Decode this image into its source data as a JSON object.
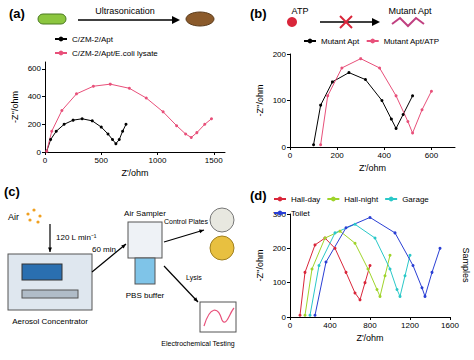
{
  "chart_data": [
    {
      "type": "line",
      "title": "(a)",
      "annotations": [
        "Ultrasonication"
      ],
      "xlabel": "Z'/ohm",
      "ylabel": "-Z''/ohm",
      "xlim": [
        0,
        1600
      ],
      "xticks": [
        0,
        500,
        1000,
        1500
      ],
      "ylim": [
        0,
        650
      ],
      "yticks": [
        0,
        200,
        400,
        600
      ],
      "grid": false,
      "legend": "top-left",
      "series": [
        {
          "name": "C/ZM-2/Apt",
          "color": "#000000",
          "marker": "circle",
          "line_style": "solid",
          "x": [
            15,
            50,
            100,
            170,
            250,
            330,
            420,
            500,
            560,
            600,
            630,
            660,
            690,
            720
          ],
          "values": [
            5,
            90,
            150,
            200,
            230,
            240,
            225,
            180,
            130,
            90,
            60,
            90,
            150,
            200
          ]
        },
        {
          "name": "C/ZM-2/Apt/E.coli lysate",
          "color": "#e8507a",
          "marker": "circle",
          "line_style": "solid",
          "x": [
            15,
            60,
            150,
            280,
            430,
            580,
            750,
            900,
            1050,
            1170,
            1250,
            1300,
            1350,
            1420,
            1480
          ],
          "values": [
            5,
            150,
            300,
            420,
            475,
            490,
            460,
            390,
            290,
            190,
            130,
            105,
            140,
            200,
            240
          ]
        }
      ]
    },
    {
      "type": "line",
      "title": "(b)",
      "annotations": [
        "ATP",
        "Mutant Apt"
      ],
      "xlabel": "Z'/ohm",
      "ylabel": "-Z''/ohm",
      "xlim": [
        0,
        700
      ],
      "xticks": [
        0,
        200,
        400,
        600
      ],
      "ylim": [
        0,
        200
      ],
      "yticks": [
        0,
        100,
        200
      ],
      "grid": false,
      "legend": "top",
      "series": [
        {
          "name": "Mutant Apt",
          "color": "#000000",
          "marker": "circle",
          "line_style": "solid",
          "x": [
            100,
            130,
            180,
            250,
            320,
            390,
            430,
            450,
            480,
            520
          ],
          "values": [
            5,
            90,
            140,
            160,
            145,
            100,
            60,
            40,
            70,
            110
          ]
        },
        {
          "name": "Mutant Apt/ATP",
          "color": "#e8507a",
          "marker": "circle",
          "line_style": "solid",
          "x": [
            130,
            160,
            220,
            300,
            380,
            450,
            500,
            520,
            560,
            600
          ],
          "values": [
            5,
            110,
            170,
            190,
            170,
            110,
            55,
            30,
            80,
            120
          ]
        }
      ]
    },
    {
      "type": "line",
      "title": "(d)",
      "annotations": [
        "Samples"
      ],
      "xlabel": "Z'/ohm",
      "ylabel": "-Z''/ohm",
      "xlim": [
        0,
        1600
      ],
      "xticks": [
        0,
        400,
        800,
        1200,
        1600
      ],
      "ylim": [
        0,
        300
      ],
      "yticks": [
        0,
        100,
        200,
        300
      ],
      "grid": false,
      "legend": "top",
      "series": [
        {
          "name": "Hall-day",
          "color": "#d9263a",
          "marker": "circle",
          "line_style": "solid",
          "x": [
            100,
            150,
            250,
            350,
            450,
            560,
            650,
            700,
            750,
            800
          ],
          "values": [
            5,
            130,
            210,
            230,
            200,
            130,
            70,
            50,
            100,
            150
          ]
        },
        {
          "name": "Hall-night",
          "color": "#9fd42a",
          "marker": "circle",
          "line_style": "solid",
          "x": [
            150,
            220,
            350,
            500,
            650,
            780,
            870,
            900,
            950,
            1000
          ],
          "values": [
            5,
            140,
            230,
            250,
            215,
            140,
            80,
            60,
            120,
            180
          ]
        },
        {
          "name": "Garage",
          "color": "#2ac8c8",
          "marker": "circle",
          "line_style": "solid",
          "x": [
            200,
            290,
            450,
            650,
            850,
            1000,
            1070,
            1100,
            1150,
            1200
          ],
          "values": [
            5,
            150,
            245,
            270,
            230,
            140,
            80,
            60,
            120,
            180
          ]
        },
        {
          "name": "Toilet",
          "color": "#2a3fd4",
          "marker": "circle",
          "line_style": "solid",
          "x": [
            250,
            360,
            560,
            800,
            1050,
            1230,
            1320,
            1350,
            1420,
            1500
          ],
          "values": [
            5,
            160,
            260,
            290,
            245,
            150,
            85,
            60,
            130,
            200
          ]
        }
      ]
    }
  ],
  "diagram": {
    "title": "(c)",
    "air": "Air",
    "flow": "120 L min⁻¹",
    "concentrator": "Aerosol Concentrator",
    "time": "60 min",
    "sampler": "Air Sampler",
    "buffer": "PBS buffer",
    "plates": "Control Plates",
    "lysis": "Lysis",
    "testing": "Electrochemical Testing"
  }
}
